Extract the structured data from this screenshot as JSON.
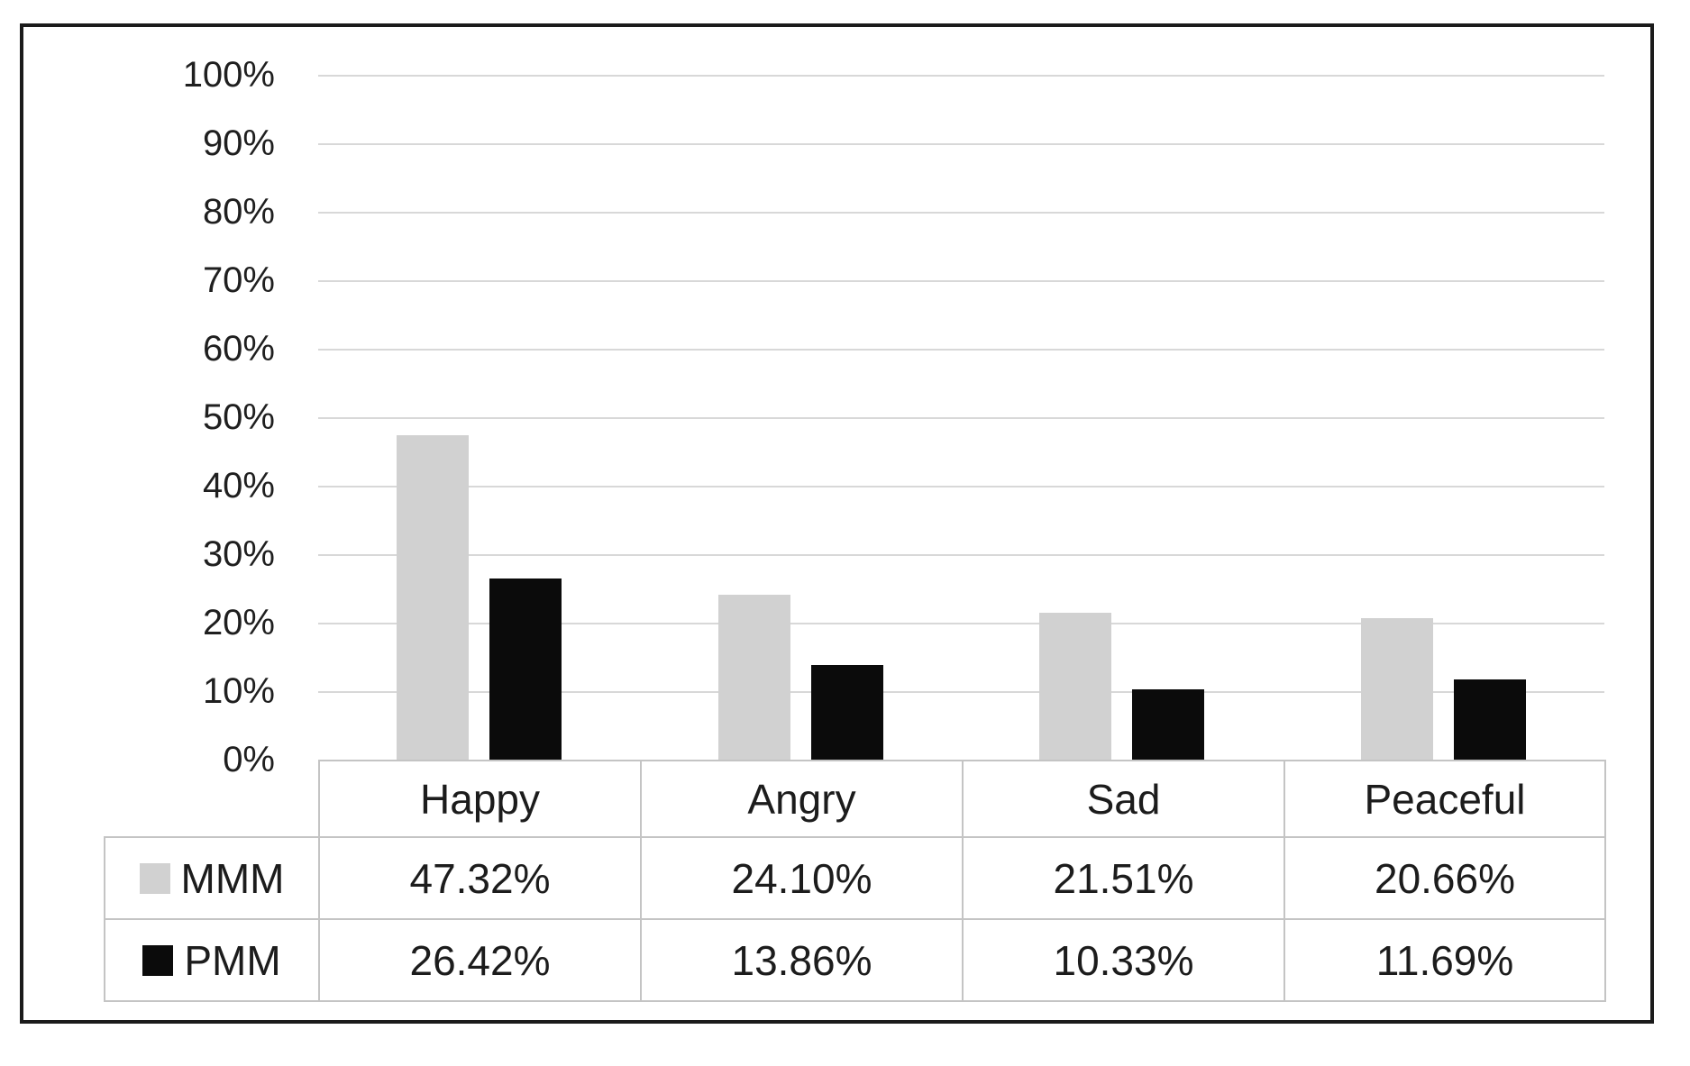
{
  "chart_data": {
    "type": "bar",
    "title": "",
    "xlabel": "",
    "ylabel": "",
    "categories": [
      "Happy",
      "Angry",
      "Sad",
      "Peaceful"
    ],
    "series": [
      {
        "name": "MMM",
        "color": "#d1d1d1",
        "values": [
          47.32,
          24.1,
          21.51,
          20.66
        ],
        "display": [
          "47.32%",
          "24.10%",
          "21.51%",
          "20.66%"
        ]
      },
      {
        "name": "PMM",
        "color": "#0b0b0b",
        "values": [
          26.42,
          13.86,
          10.33,
          11.69
        ],
        "display": [
          "26.42%",
          "13.86%",
          "10.33%",
          "11.69%"
        ]
      }
    ],
    "y_axis": {
      "min": 0,
      "max": 100,
      "step": 10,
      "unit": "%",
      "tick_labels": [
        "100%",
        "90%",
        "80%",
        "70%",
        "60%",
        "50%",
        "40%",
        "30%",
        "20%",
        "10%",
        "0%"
      ]
    },
    "gridlines": {
      "visible": true,
      "color": "#d8d8d8"
    },
    "legend_position": "data-table-left",
    "data_table": {
      "visible": true,
      "border_color": "#c4c4c4"
    },
    "frame": {
      "border_color": "#1b1b1b",
      "background": "#ffffff"
    }
  }
}
